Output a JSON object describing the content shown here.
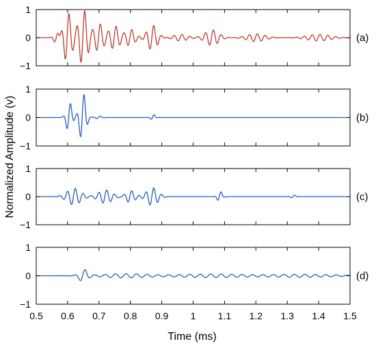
{
  "chart_data": {
    "type": "line",
    "xlabel": "Time (ms)",
    "ylabel": "Normalized Amplitude (v)",
    "xlim": [
      0.5,
      1.5
    ],
    "ylim": [
      -1,
      1
    ],
    "xticks": [
      "0.5",
      "0.6",
      "0.7",
      "0.8",
      "0.9",
      "1",
      "1.1",
      "1.2",
      "1.3",
      "1.4",
      "1.5"
    ],
    "yticks": [
      "−1",
      "0",
      "1"
    ],
    "grid": false,
    "panels": [
      {
        "tag": "(a)",
        "color": "#c0392b",
        "carrier_khz": 40,
        "bursts": [
          {
            "t0": 0.565,
            "amp": 0.22,
            "width": 0.012
          },
          {
            "t0": 0.6,
            "amp": 0.9,
            "width": 0.018
          },
          {
            "t0": 0.65,
            "amp": 1.0,
            "width": 0.02
          },
          {
            "t0": 0.7,
            "amp": 0.5,
            "width": 0.02
          },
          {
            "t0": 0.75,
            "amp": 0.42,
            "width": 0.022
          },
          {
            "t0": 0.8,
            "amp": 0.3,
            "width": 0.02
          },
          {
            "t0": 0.87,
            "amp": 0.45,
            "width": 0.022
          },
          {
            "t0": 0.96,
            "amp": 0.12,
            "width": 0.03
          },
          {
            "t0": 1.06,
            "amp": 0.28,
            "width": 0.03
          },
          {
            "t0": 1.2,
            "amp": 0.14,
            "width": 0.04
          },
          {
            "t0": 1.4,
            "amp": 0.12,
            "width": 0.05
          }
        ]
      },
      {
        "tag": "(b)",
        "color": "#1f5fbf",
        "carrier_khz": 40,
        "bursts": [
          {
            "t0": 0.605,
            "amp": 0.55,
            "width": 0.012
          },
          {
            "t0": 0.648,
            "amp": 0.88,
            "width": 0.014
          },
          {
            "t0": 0.7,
            "amp": 0.05,
            "width": 0.015
          },
          {
            "t0": 0.872,
            "amp": 0.12,
            "width": 0.008
          }
        ]
      },
      {
        "tag": "(c)",
        "color": "#1f5fbf",
        "carrier_khz": 40,
        "bursts": [
          {
            "t0": 0.62,
            "amp": 0.3,
            "width": 0.03
          },
          {
            "t0": 0.72,
            "amp": 0.24,
            "width": 0.03
          },
          {
            "t0": 0.8,
            "amp": 0.22,
            "width": 0.02
          },
          {
            "t0": 0.87,
            "amp": 0.32,
            "width": 0.025
          },
          {
            "t0": 1.085,
            "amp": 0.2,
            "width": 0.01
          },
          {
            "t0": 1.32,
            "amp": 0.06,
            "width": 0.01
          }
        ]
      },
      {
        "tag": "(d)",
        "color": "#1f5fbf",
        "carrier_khz": 30,
        "bursts": [
          {
            "t0": 0.65,
            "amp": 0.22,
            "width": 0.018
          },
          {
            "t0": 0.78,
            "amp": 0.07,
            "width": 0.1
          },
          {
            "t0": 1.05,
            "amp": 0.06,
            "width": 0.15
          },
          {
            "t0": 1.35,
            "amp": 0.05,
            "width": 0.15
          }
        ]
      }
    ]
  }
}
